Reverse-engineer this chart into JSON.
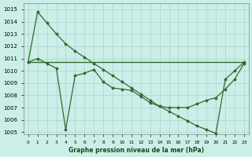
{
  "title": "Graphe pression niveau de la mer (hPa)",
  "bg_color": "#cceee8",
  "grid_color": "#aad4cc",
  "line_color": "#2d6b2d",
  "xlim": [
    -0.5,
    23.5
  ],
  "ylim": [
    1004.8,
    1015.5
  ],
  "yticks": [
    1005,
    1006,
    1007,
    1008,
    1009,
    1010,
    1011,
    1012,
    1013,
    1014,
    1015
  ],
  "xtick_labels": [
    "0",
    "1",
    "2",
    "3",
    "4",
    "5",
    "6",
    "7",
    "8",
    "9",
    "10",
    "11",
    "12",
    "13",
    "14",
    "15",
    "16",
    "17",
    "18",
    "19",
    "20",
    "21",
    "22",
    "23"
  ],
  "series_flat": [
    1010.7,
    1010.7,
    1010.7,
    1010.7,
    1010.7,
    1010.7,
    1010.7,
    1010.7,
    1010.7,
    1010.7,
    1010.7,
    1010.7,
    1010.7,
    1010.7,
    1010.7,
    1010.7,
    1010.7,
    1010.7,
    1010.7,
    1010.7,
    1010.7,
    1010.7,
    1010.7,
    1010.7
  ],
  "series_diagonal": [
    1010.7,
    1014.8,
    1013.9,
    1013.0,
    1012.2,
    1011.6,
    1011.1,
    1010.6,
    1010.1,
    1009.6,
    1009.1,
    1008.6,
    1008.1,
    1007.6,
    1007.1,
    1006.7,
    1006.3,
    1005.9,
    1005.5,
    1005.2,
    1004.9,
    1009.3,
    1010.0,
    1010.7
  ],
  "series_wavy": [
    1010.7,
    1011.0,
    1010.6,
    1010.2,
    1005.2,
    1009.6,
    1009.8,
    1010.1,
    1009.1,
    1008.6,
    1008.5,
    1008.4,
    1007.9,
    1007.4,
    1007.1,
    1007.0,
    1007.0,
    1007.0,
    1007.3,
    1007.6,
    1007.8,
    1008.5,
    1009.3,
    1010.6
  ]
}
